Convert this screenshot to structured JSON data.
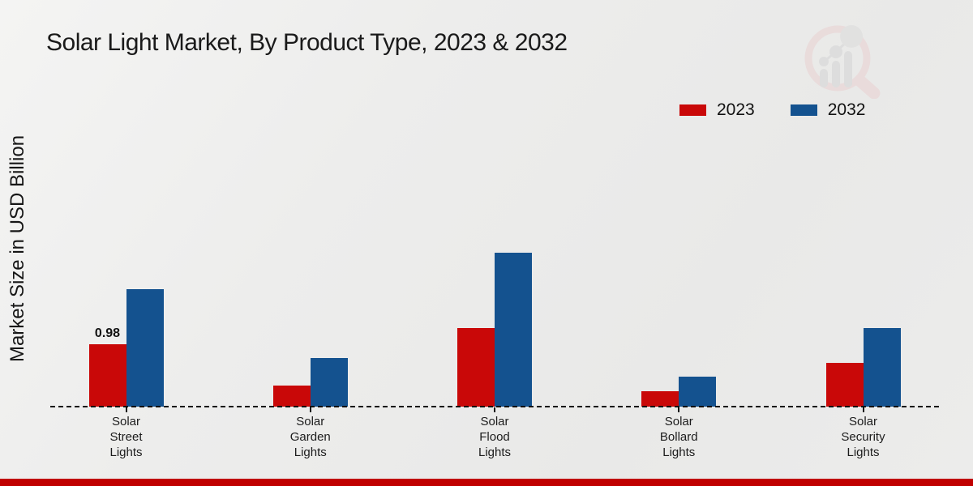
{
  "page": {
    "bottom_bar_color": "#c00000",
    "background_color": "#ececeb"
  },
  "watermark": {
    "name": "market-research-future-logo",
    "ring_color": "#e9d3d3",
    "bar_color": "#d6d6d6"
  },
  "chart_data": {
    "type": "bar",
    "title": "Solar Light Market, By Product Type, 2023 & 2032",
    "ylabel": "Market Size in USD Billion",
    "xlabel": "",
    "categories": [
      "Solar Street Lights",
      "Solar Garden Lights",
      "Solar Flood Lights",
      "Solar Bollard Lights",
      "Solar Security Lights"
    ],
    "series": [
      {
        "name": "2023",
        "color": "#c90808",
        "values": [
          0.98,
          0.33,
          1.23,
          0.24,
          0.69
        ],
        "bar_labels": [
          "0.98",
          "",
          "",
          "",
          ""
        ]
      },
      {
        "name": "2032",
        "color": "#14528f",
        "values": [
          1.85,
          0.76,
          2.42,
          0.47,
          1.23
        ],
        "bar_labels": [
          "",
          "",
          "",
          "",
          ""
        ]
      }
    ],
    "ylim": [
      0,
      2.6
    ],
    "grid": false,
    "y_axis_ticks_visible": false,
    "baseline_style": "dashed",
    "legend_position": "top-right",
    "units": "USD Billion"
  }
}
